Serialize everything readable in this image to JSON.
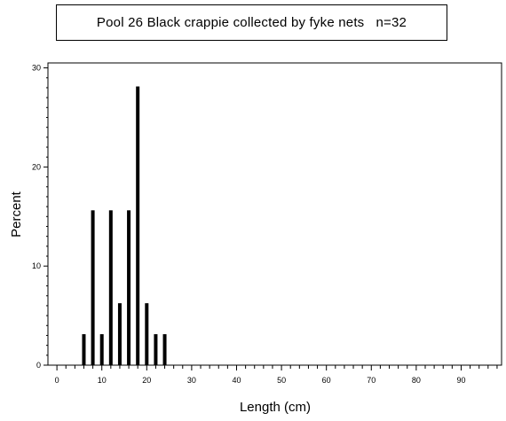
{
  "chart_data": {
    "type": "bar",
    "title": "Pool 26 Black crappie collected by fyke nets   n=32",
    "xlabel": "Length (cm)",
    "ylabel": "Percent",
    "xlim": [
      -2,
      99
    ],
    "ylim": [
      0,
      30.5
    ],
    "x_major_ticks": [
      0,
      10,
      20,
      30,
      40,
      50,
      60,
      70,
      80,
      90
    ],
    "y_major_ticks": [
      0,
      10,
      20,
      30
    ],
    "grid": false,
    "legend": "none",
    "bar_color": "#000000",
    "x": [
      6,
      8,
      10,
      12,
      14,
      16,
      18,
      20,
      22,
      24
    ],
    "values": [
      3.125,
      15.625,
      3.125,
      15.625,
      6.25,
      15.625,
      28.125,
      6.25,
      3.125,
      3.125
    ]
  }
}
